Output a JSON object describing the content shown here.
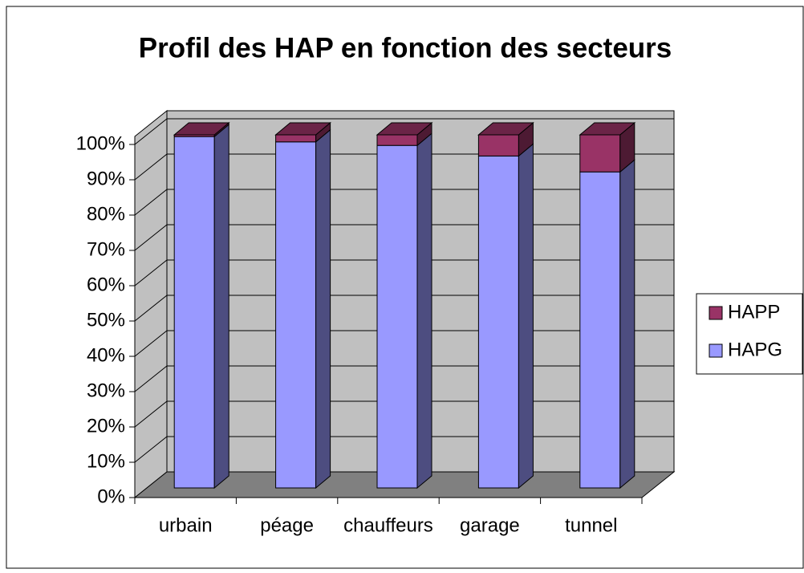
{
  "chart_data": {
    "type": "bar3d_stacked",
    "title": "Profil des HAP en fonction des secteurs",
    "categories": [
      "urbain",
      "péage",
      "chauffeurs",
      "garage",
      "tunnel"
    ],
    "series": [
      {
        "name": "HAPG",
        "color": "#9999ff",
        "values": [
          99.5,
          98,
          97,
          94,
          89.5
        ]
      },
      {
        "name": "HAPP",
        "color": "#993366",
        "values": [
          0.5,
          2,
          3,
          6,
          10.5
        ]
      }
    ],
    "ylim": [
      0,
      100
    ],
    "yticks": [
      {
        "value": 0,
        "label": "0%"
      },
      {
        "value": 10,
        "label": "10%"
      },
      {
        "value": 20,
        "label": "20%"
      },
      {
        "value": 30,
        "label": "30%"
      },
      {
        "value": 40,
        "label": "40%"
      },
      {
        "value": 50,
        "label": "50%"
      },
      {
        "value": 60,
        "label": "60%"
      },
      {
        "value": 70,
        "label": "70%"
      },
      {
        "value": 80,
        "label": "80%"
      },
      {
        "value": 90,
        "label": "90%"
      },
      {
        "value": 100,
        "label": "100%"
      }
    ],
    "grid": true,
    "legend": "right"
  }
}
